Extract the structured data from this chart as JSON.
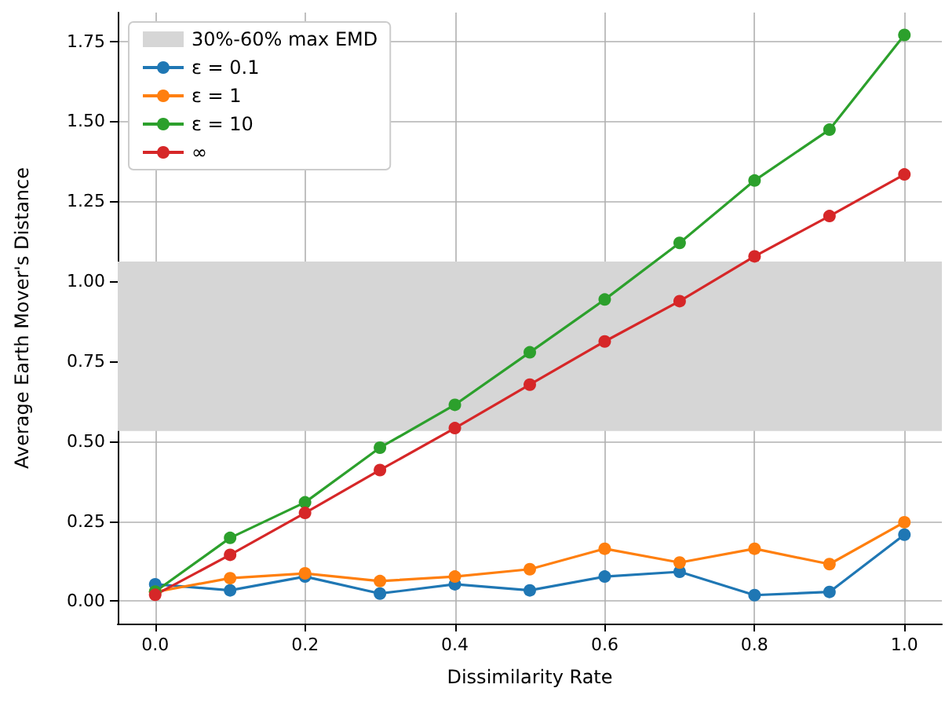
{
  "chart_data": {
    "type": "line",
    "xlabel": "Dissimilarity Rate",
    "ylabel": "Average Earth Mover's Distance",
    "x": [
      0,
      0.1,
      0.2,
      0.3,
      0.4,
      0.5,
      0.6,
      0.7,
      0.8,
      0.9,
      1.0
    ],
    "series": [
      {
        "name": "ε = 0.1",
        "color": "#1f77b4",
        "values": [
          0.053,
          0.034,
          0.077,
          0.024,
          0.053,
          0.034,
          0.077,
          0.092,
          0.019,
          0.029,
          0.208
        ]
      },
      {
        "name": "ε = 1",
        "color": "#ff7f0e",
        "values": [
          0.029,
          0.072,
          0.087,
          0.063,
          0.077,
          0.1,
          0.164,
          0.121,
          0.164,
          0.116,
          0.247
        ]
      },
      {
        "name": "ε = 10",
        "color": "#2ca02c",
        "values": [
          0.03,
          0.198,
          0.309,
          0.48,
          0.614,
          0.778,
          0.943,
          1.12,
          1.315,
          1.474,
          1.77
        ]
      },
      {
        "name": "∞",
        "color": "#d62728",
        "values": [
          0.02,
          0.145,
          0.276,
          0.41,
          0.541,
          0.677,
          0.812,
          0.938,
          1.078,
          1.204,
          1.334
        ]
      }
    ],
    "bands": [
      {
        "axis": "y",
        "from": 0.532,
        "to": 1.062,
        "label": "30%-60% max EMD",
        "color": "#d6d6d6"
      }
    ],
    "xlim": [
      -0.05,
      1.05
    ],
    "xticks": [
      {
        "value": 0,
        "label": "0.0"
      },
      {
        "value": 0.2,
        "label": "0.2"
      },
      {
        "value": 0.4,
        "label": "0.4"
      },
      {
        "value": 0.6,
        "label": "0.6"
      },
      {
        "value": 0.8,
        "label": "0.8"
      },
      {
        "value": 1,
        "label": "1.0"
      }
    ],
    "ylim": [
      -0.07,
      1.84
    ],
    "yticks": [
      {
        "value": 0,
        "label": "0.00"
      },
      {
        "value": 0.25,
        "label": "0.25"
      },
      {
        "value": 0.5,
        "label": "0.50"
      },
      {
        "value": 0.75,
        "label": "0.75"
      },
      {
        "value": 1,
        "label": "1.00"
      },
      {
        "value": 1.25,
        "label": "1.25"
      },
      {
        "value": 1.5,
        "label": "1.50"
      },
      {
        "value": 1.75,
        "label": "1.75"
      }
    ],
    "grid": true,
    "legend": "top left",
    "marker": "circle",
    "line_style": "solid"
  }
}
